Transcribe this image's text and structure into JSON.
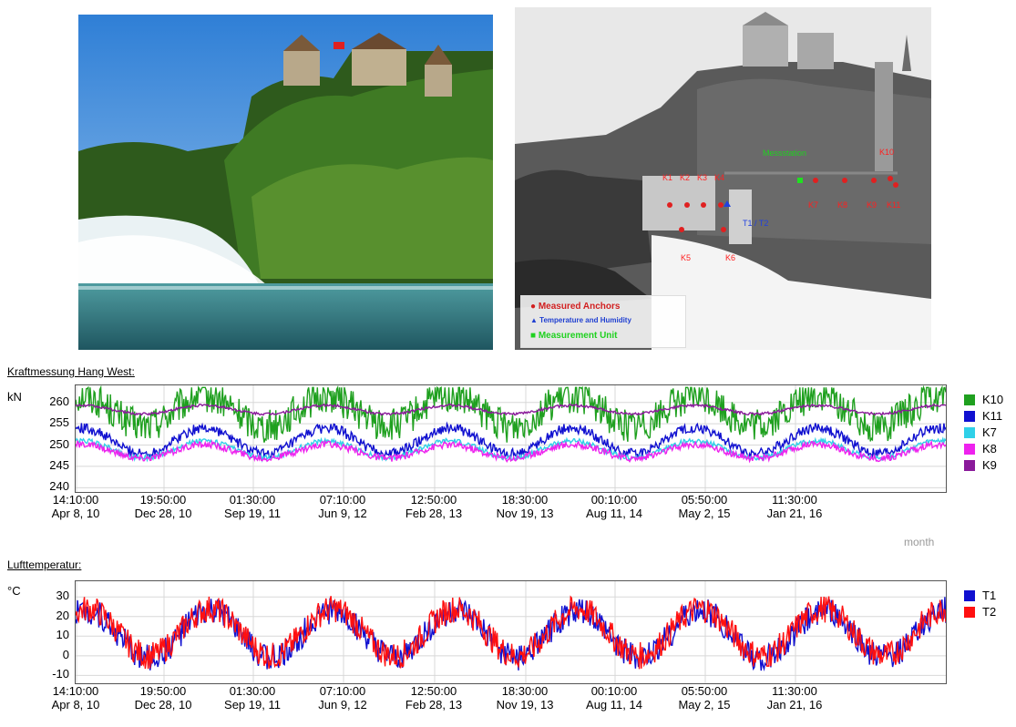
{
  "photo_right": {
    "legend": [
      {
        "label": "Measured Anchors",
        "color": "#d11f1f",
        "icon": "dot-icon"
      },
      {
        "label": "Temperature and Humidity",
        "color": "#1f3fd1",
        "icon": "triangle-icon"
      },
      {
        "label": "Measurement Unit",
        "color": "#1fd11f",
        "icon": "square-icon"
      }
    ],
    "labels": {
      "messstation": "Messstation",
      "k1": "K1",
      "k2": "K2",
      "k3": "K3",
      "k4": "K4",
      "k5": "K5",
      "k6": "K6",
      "k7": "K7",
      "k8": "K8",
      "k9": "K9",
      "k10": "K10",
      "k11": "K11",
      "t1": "T1 / T2"
    }
  },
  "chart_data": [
    {
      "type": "line",
      "title": "Kraftmessung Hang West:",
      "ylabel": "kN",
      "ylim": [
        239,
        264
      ],
      "yticks": [
        "260",
        "255",
        "250",
        "245",
        "240"
      ],
      "xticks": [
        {
          "time": "14:10:00",
          "date": "Apr 8, 10"
        },
        {
          "time": "19:50:00",
          "date": "Dec 28, 10"
        },
        {
          "time": "01:30:00",
          "date": "Sep 19, 11"
        },
        {
          "time": "07:10:00",
          "date": "Jun 9, 12"
        },
        {
          "time": "12:50:00",
          "date": "Feb 28, 13"
        },
        {
          "time": "18:30:00",
          "date": "Nov 19, 13"
        },
        {
          "time": "00:10:00",
          "date": "Aug 11, 14"
        },
        {
          "time": "05:50:00",
          "date": "May 2, 15"
        },
        {
          "time": "11:30:00",
          "date": "Jan 21, 16"
        }
      ],
      "axis_note": "month",
      "grid": true,
      "legend_position": "right",
      "series": [
        {
          "name": "K10",
          "color": "#1fa01f",
          "mean": 258,
          "amp": 3.5,
          "noise": 4.0,
          "phase": 0.2
        },
        {
          "name": "K11",
          "color": "#1010d0",
          "mean": 251,
          "amp": 3.0,
          "noise": 1.2,
          "phase": 0.2
        },
        {
          "name": "K7",
          "color": "#2fd0e8",
          "mean": 249,
          "amp": 2.0,
          "noise": 0.6,
          "phase": 0.2
        },
        {
          "name": "K8",
          "color": "#ee22ee",
          "mean": 248.5,
          "amp": 1.6,
          "noise": 0.8,
          "phase": 0.2
        },
        {
          "name": "K9",
          "color": "#8a1a9a",
          "mean": 258.3,
          "amp": 1.0,
          "noise": 0.3,
          "phase": 0.2
        }
      ]
    },
    {
      "type": "line",
      "title": "Lufttemperatur:",
      "ylabel": "°C",
      "ylim": [
        -14,
        38
      ],
      "yticks": [
        "30",
        "20",
        "10",
        "0",
        "-10"
      ],
      "xticks": [
        {
          "time": "14:10:00",
          "date": "Apr 8, 10"
        },
        {
          "time": "19:50:00",
          "date": "Dec 28, 10"
        },
        {
          "time": "01:30:00",
          "date": "Sep 19, 11"
        },
        {
          "time": "07:10:00",
          "date": "Jun 9, 12"
        },
        {
          "time": "12:50:00",
          "date": "Feb 28, 13"
        },
        {
          "time": "18:30:00",
          "date": "Nov 19, 13"
        },
        {
          "time": "00:10:00",
          "date": "Aug 11, 14"
        },
        {
          "time": "05:50:00",
          "date": "May 2, 15"
        },
        {
          "time": "11:30:00",
          "date": "Jan 21, 16"
        }
      ],
      "grid": true,
      "legend_position": "right",
      "series": [
        {
          "name": "T1",
          "color": "#1010d0",
          "mean": 11,
          "amp": 12,
          "noise": 7,
          "phase": 0.15
        },
        {
          "name": "T2",
          "color": "#ff1010",
          "mean": 12,
          "amp": 12,
          "noise": 7,
          "phase": 0.15
        }
      ]
    }
  ]
}
